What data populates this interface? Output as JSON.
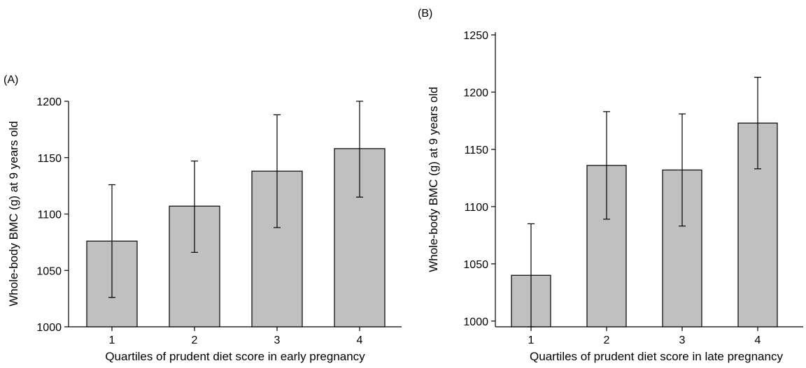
{
  "chart_data": [
    {
      "type": "bar",
      "panel_label": "(A)",
      "categories": [
        "1",
        "2",
        "3",
        "4"
      ],
      "values": [
        1076,
        1107,
        1138,
        1158
      ],
      "error_low": [
        1026,
        1066,
        1088,
        1115
      ],
      "error_high": [
        1126,
        1147,
        1188,
        1200
      ],
      "title": "",
      "xlabel": "Quartiles of prudent diet score in early pregnancy",
      "ylabel": "Whole-body BMC (g) at 9 years old",
      "ylim": [
        1000,
        1200
      ],
      "yticks": [
        1000,
        1050,
        1100,
        1150,
        1200
      ],
      "bar_color": "#c0c0c0",
      "grid": false
    },
    {
      "type": "bar",
      "panel_label": "(B)",
      "categories": [
        "1",
        "2",
        "3",
        "4"
      ],
      "values": [
        1040,
        1136,
        1132,
        1173
      ],
      "error_low": [
        995,
        1089,
        1083,
        1133
      ],
      "error_high": [
        1085,
        1183,
        1181,
        1213
      ],
      "title": "",
      "xlabel": "Quartiles of prudent diet score in late pregnancy",
      "ylabel": "Whole-body BMC (g) at 9 years old",
      "ylim": [
        995,
        1250
      ],
      "yticks": [
        1000,
        1050,
        1100,
        1150,
        1200,
        1250
      ],
      "bar_color": "#c0c0c0",
      "grid": false
    }
  ]
}
